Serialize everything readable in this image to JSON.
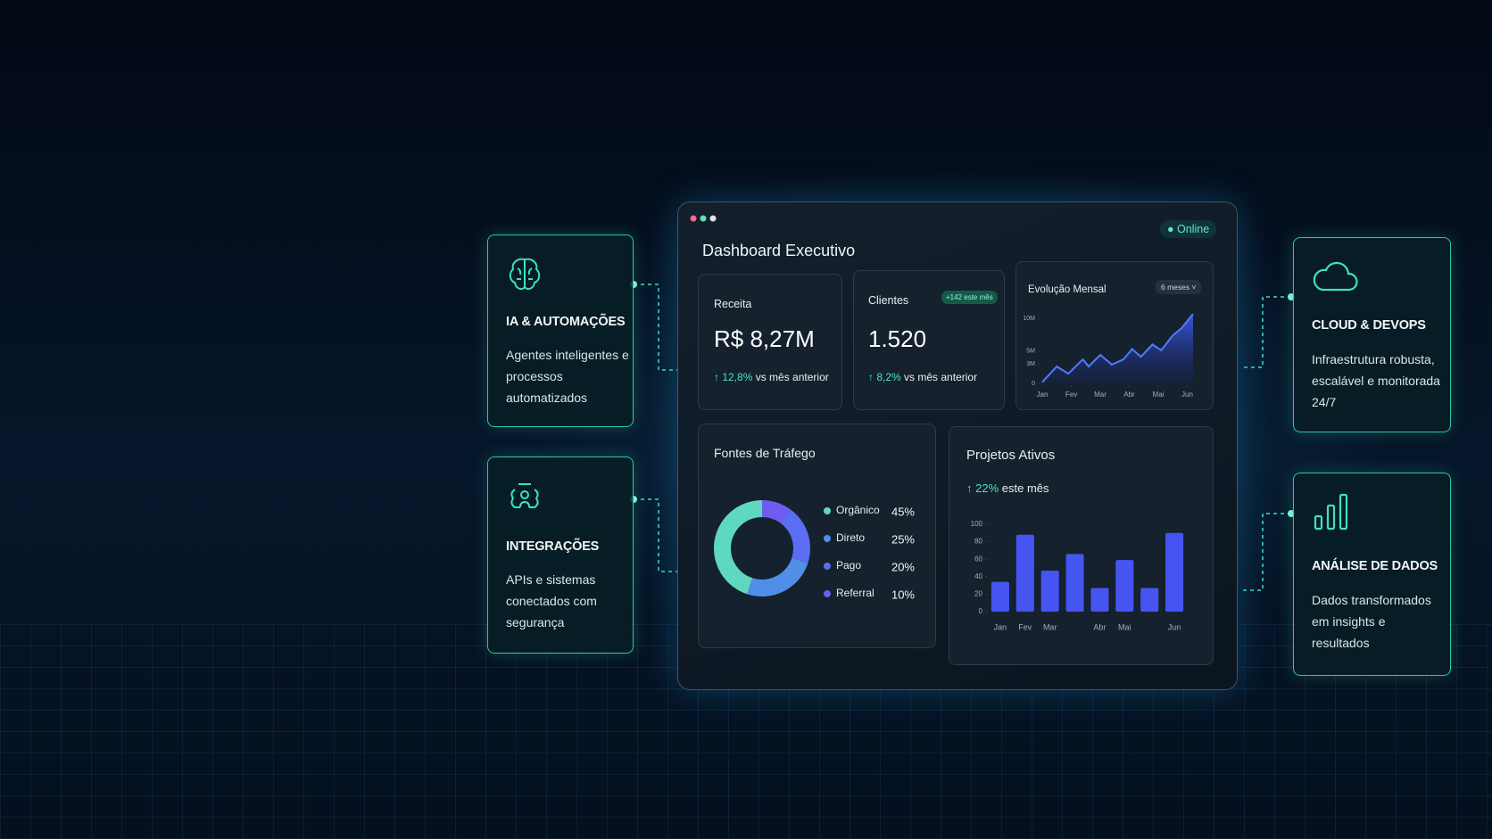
{
  "cards": [
    {
      "title": "IA & AUTOMAÇÕES",
      "text": "Agentes inteligentes e processos automatizados"
    },
    {
      "title": "INTEGRAÇÕES",
      "text": "APIs e sistemas conectados com segurança"
    },
    {
      "title": "CLOUD & DEVOPS",
      "text": "Infraestrutura robusta, escalável e monitorada 24/7"
    },
    {
      "title": "ANÁLISE DE DADOS",
      "text": "Dados transformados em insights e resultados"
    }
  ],
  "dashboard": {
    "title": "Dashboard Executivo",
    "status": "Online",
    "kpis": [
      {
        "label": "Receita",
        "value": "R$ 8,27M",
        "change": "12,8%",
        "change_text": "vs mês anterior"
      },
      {
        "label": "Clientes",
        "badge": "+142 este mês",
        "value": "1.520",
        "change": "8,2%",
        "change_text": "vs mês anterior"
      }
    ],
    "revenue_chart": {
      "type": "line",
      "title": "Evolução Mensal",
      "period": "6 meses",
      "color": "#4f7bff",
      "x": [
        0,
        0.5,
        0.9,
        1.4,
        1.6,
        2.0,
        2.4,
        2.8,
        3.1,
        3.4,
        3.8,
        4.1,
        4.5,
        4.8,
        5.2
      ],
      "values": [
        0.2,
        2.6,
        1.5,
        3.7,
        2.6,
        4.4,
        2.9,
        3.7,
        5.3,
        4.1,
        6.0,
        5.1,
        7.4,
        8.5,
        10.7
      ],
      "xlim": [
        0,
        5.2
      ],
      "ylim": [
        0,
        11
      ],
      "xticks": [
        {
          "value": 0,
          "label": "Jan"
        },
        {
          "value": 1,
          "label": "Fev"
        },
        {
          "value": 2,
          "label": "Mar"
        },
        {
          "value": 3,
          "label": "Abr"
        },
        {
          "value": 4,
          "label": "Mai"
        },
        {
          "value": 5,
          "label": "Jun"
        }
      ],
      "yticks": [
        0,
        {
          "value": 3,
          "label": "3M"
        },
        {
          "value": 5,
          "label": "5M"
        },
        {
          "value": 10,
          "label": "10M"
        }
      ]
    },
    "traffic_chart": {
      "type": "pie",
      "title": "Fontes de Tráfego",
      "categories": [
        "Orgânico",
        "Direto",
        "Pago",
        "Referral"
      ],
      "values": [
        45,
        25,
        20,
        10
      ],
      "value_labels": [
        "45%",
        "25%",
        "20%",
        "10%"
      ],
      "colors": [
        "#5fd8c2",
        "#4f8fe8",
        "#5b6df2",
        "#6f5cf0"
      ]
    },
    "projects_chart": {
      "type": "bar",
      "title": "Projetos Ativos",
      "change": "22%",
      "change_text": "este mês",
      "color": "#4654f2",
      "categories": [
        "Jan",
        "Fev",
        "Mar",
        null,
        "Abr",
        "Mai",
        null,
        "Jun"
      ],
      "values": [
        34,
        88,
        47,
        66,
        27,
        59,
        27,
        90
      ],
      "ylim": [
        0,
        100
      ],
      "yticks": [
        0,
        20,
        40,
        60,
        80,
        100
      ]
    }
  }
}
